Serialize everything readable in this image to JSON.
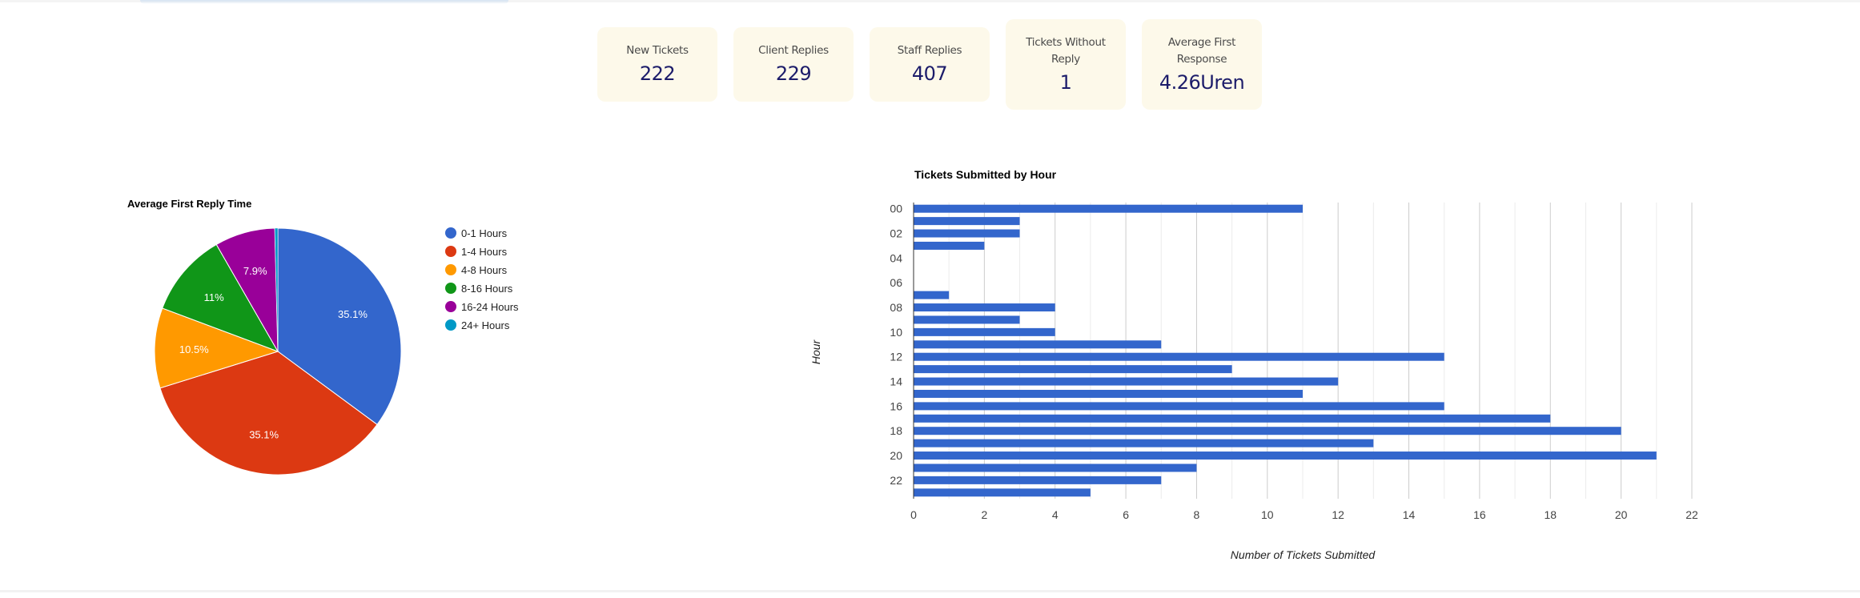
{
  "stats": [
    {
      "label": "New Tickets",
      "value": "222"
    },
    {
      "label": "Client Replies",
      "value": "229"
    },
    {
      "label": "Staff Replies",
      "value": "407"
    },
    {
      "label": "Tickets Without Reply",
      "value": "1"
    },
    {
      "label": "Average First Response",
      "value": "4.26Uren"
    }
  ],
  "chart_data": [
    {
      "type": "pie",
      "title": "Average First Reply Time",
      "legend_position": "right",
      "categories": [
        "0-1 Hours",
        "1-4 Hours",
        "4-8 Hours",
        "8-16 Hours",
        "16-24 Hours",
        "24+ Hours"
      ],
      "values": [
        35.1,
        35.1,
        10.5,
        11,
        7.9,
        0.4
      ],
      "labels": [
        "35.1%",
        "35.1%",
        "10.5%",
        "11%",
        "7.9%",
        ""
      ],
      "colors": [
        "#3366cc",
        "#dc3912",
        "#ff9900",
        "#109618",
        "#990099",
        "#0099c6"
      ]
    },
    {
      "type": "bar",
      "orientation": "horizontal",
      "title": "Tickets Submitted by Hour",
      "xlabel": "Number of Tickets Submitted",
      "ylabel": "Hour",
      "categories": [
        "00",
        "01",
        "02",
        "03",
        "04",
        "05",
        "06",
        "07",
        "08",
        "09",
        "10",
        "11",
        "12",
        "13",
        "14",
        "15",
        "16",
        "17",
        "18",
        "19",
        "20",
        "21",
        "22",
        "23"
      ],
      "values": [
        11,
        3,
        3,
        2,
        0,
        0,
        0,
        1,
        4,
        3,
        4,
        7,
        15,
        9,
        12,
        11,
        15,
        18,
        20,
        13,
        21,
        8,
        7,
        5
      ],
      "y_tick_labels": [
        "00",
        "02",
        "04",
        "06",
        "08",
        "10",
        "12",
        "14",
        "16",
        "18",
        "20",
        "22"
      ],
      "x_ticks": [
        0,
        2,
        4,
        6,
        8,
        10,
        12,
        14,
        16,
        18,
        20,
        22
      ],
      "xlim": [
        0,
        22
      ],
      "grid": true,
      "color": "#3366cc"
    }
  ]
}
